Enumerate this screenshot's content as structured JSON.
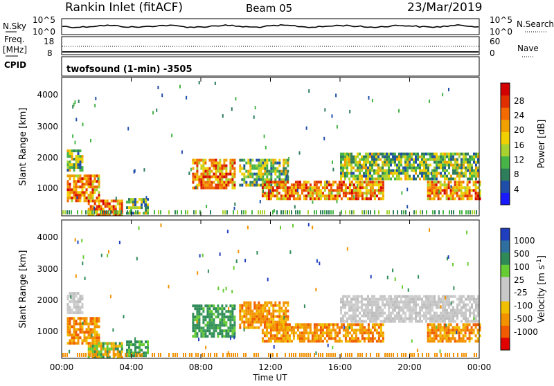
{
  "header": {
    "title": "Rankin Inlet (fitACF)",
    "beam": "Beam 05",
    "date": "23/Mar/2019"
  },
  "noise_panel": {
    "left_label": "N.Sky",
    "left_ticks": [
      "10^5",
      "10^0"
    ],
    "right_ticks": [
      "10^5",
      "10^0"
    ],
    "right_label": "N.Search"
  },
  "freq_panel": {
    "left_label_line1": "Freq.",
    "left_label_line2": "[MHz]",
    "left_ticks": [
      "18",
      "8"
    ],
    "right_ticks": [
      "60",
      "0"
    ],
    "right_label": "Nave",
    "cpid_label": "CPID"
  },
  "cpid_text": "twofsound (1-min) -3505",
  "x_ticks": [
    "00:00",
    "04:00",
    "08:00",
    "12:00",
    "16:00",
    "20:00",
    "00:00"
  ],
  "x_label": "Time UT",
  "chart_data": [
    {
      "type": "heatmap",
      "panel": "power",
      "ylabel": "Slant Range [km]",
      "y_ticks": [
        "1000",
        "2000",
        "3000",
        "4000"
      ],
      "ylim": [
        180,
        4600
      ],
      "xlim": [
        0,
        24
      ],
      "colorbar": {
        "label": "Power [dB]",
        "ticks": [
          "4",
          "8",
          "12",
          "16",
          "20",
          "24",
          "28"
        ],
        "colors": [
          "#1a1aff",
          "#1f4ea8",
          "#2e7d5b",
          "#47b447",
          "#a7d230",
          "#f0d000",
          "#f0a000",
          "#f26a00",
          "#e03000",
          "#d30000"
        ]
      },
      "echo_regions": [
        {
          "t_start": 0.3,
          "t_end": 2.2,
          "range_start": 700,
          "range_end": 1500,
          "level": "high"
        },
        {
          "t_start": 0.3,
          "t_end": 1.2,
          "range_start": 1600,
          "range_end": 2300,
          "level": "medium"
        },
        {
          "t_start": 1.5,
          "t_end": 3.5,
          "range_start": 250,
          "range_end": 700,
          "level": "high"
        },
        {
          "t_start": 3.7,
          "t_end": 5.0,
          "range_start": 250,
          "range_end": 750,
          "level": "medium"
        },
        {
          "t_start": 7.5,
          "t_end": 10.0,
          "range_start": 1100,
          "range_end": 2000,
          "level": "high"
        },
        {
          "t_start": 10.2,
          "t_end": 13.0,
          "range_start": 1200,
          "range_end": 2000,
          "level": "medium"
        },
        {
          "t_start": 11.5,
          "t_end": 18.5,
          "range_start": 700,
          "range_end": 1300,
          "level": "high"
        },
        {
          "t_start": 16.0,
          "t_end": 24.0,
          "range_start": 1400,
          "range_end": 2200,
          "level": "medium"
        },
        {
          "t_start": 21.0,
          "t_end": 24.0,
          "range_start": 700,
          "range_end": 1300,
          "level": "high"
        }
      ]
    },
    {
      "type": "heatmap",
      "panel": "velocity",
      "ylabel": "Slant Range [km]",
      "y_ticks": [
        "1000",
        "2000",
        "3000",
        "4000"
      ],
      "ylim": [
        180,
        4600
      ],
      "xlim": [
        0,
        24
      ],
      "colorbar": {
        "label": "Velocity [m s^-1]",
        "ticks": [
          "1000",
          "500",
          "100",
          "25",
          "-25",
          "-100",
          "-500",
          "-1000"
        ],
        "colors": [
          "#1f3fbf",
          "#2f6fa0",
          "#2e8b57",
          "#66cc33",
          "#c8c8c8",
          "#c8c8c8",
          "#f0c000",
          "#f39200",
          "#f05a00",
          "#e00000"
        ]
      },
      "echo_regions": [
        {
          "t_start": 0.3,
          "t_end": 2.2,
          "range_start": 700,
          "range_end": 1500,
          "level": "orange"
        },
        {
          "t_start": 0.3,
          "t_end": 1.2,
          "range_start": 1600,
          "range_end": 2300,
          "level": "grey"
        },
        {
          "t_start": 1.5,
          "t_end": 3.5,
          "range_start": 250,
          "range_end": 700,
          "level": "mixed"
        },
        {
          "t_start": 3.7,
          "t_end": 5.0,
          "range_start": 250,
          "range_end": 750,
          "level": "green"
        },
        {
          "t_start": 7.5,
          "t_end": 10.0,
          "range_start": 900,
          "range_end": 1900,
          "level": "green"
        },
        {
          "t_start": 10.2,
          "t_end": 13.0,
          "range_start": 1200,
          "range_end": 2000,
          "level": "orange"
        },
        {
          "t_start": 11.5,
          "t_end": 18.5,
          "range_start": 700,
          "range_end": 1300,
          "level": "orange"
        },
        {
          "t_start": 16.0,
          "t_end": 24.0,
          "range_start": 1400,
          "range_end": 2200,
          "level": "grey"
        },
        {
          "t_start": 21.0,
          "t_end": 24.0,
          "range_start": 700,
          "range_end": 1300,
          "level": "orange"
        }
      ]
    }
  ]
}
